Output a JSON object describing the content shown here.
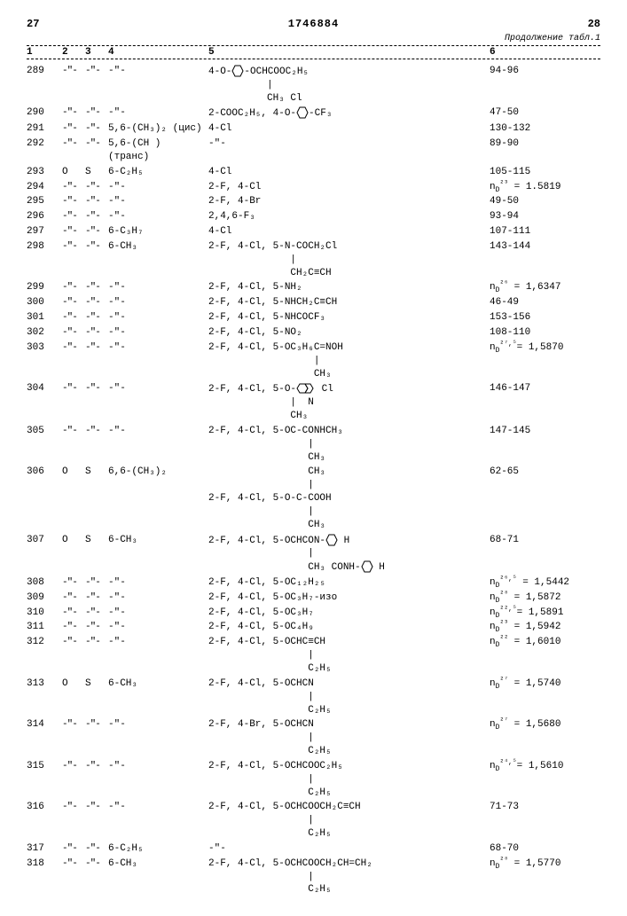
{
  "header": {
    "left_page": "27",
    "patent_no": "1746884",
    "right_page": "28",
    "continuation": "Продолжение табл.1"
  },
  "columns": [
    "1",
    "2",
    "3",
    "4",
    "5",
    "6"
  ],
  "ditto": "-\"-",
  "rows": [
    {
      "n": "289",
      "c2": "-\"-",
      "c3": "-\"-",
      "c4": "-\"-",
      "c5_lines": [
        "4-O-⬡-OCHCOOC₂H₅",
        "          |",
        "          CH₃ Cl"
      ],
      "c6": "94-96"
    },
    {
      "n": "290",
      "c2": "-\"-",
      "c3": "-\"-",
      "c4": "-\"-",
      "c5_lines": [
        "2-COOC₂H₅, 4-O-⬡-CF₃"
      ],
      "c6": "47-50"
    },
    {
      "n": "291",
      "c2": "-\"-",
      "c3": "-\"-",
      "c4": "5,6-(CH₃)₂ (цис)",
      "c5_lines": [
        "4-Cl"
      ],
      "c6": "130-132"
    },
    {
      "n": "292",
      "c2": "-\"-",
      "c3": "-\"-",
      "c4": "5,6-(CH ) (транс)",
      "c5_lines": [
        "-\"-"
      ],
      "c6": "89-90"
    },
    {
      "n": "293",
      "c2": "O",
      "c3": "S",
      "c4": "6-C₂H₅",
      "c5_lines": [
        "4-Cl"
      ],
      "c6": "105-115"
    },
    {
      "n": "294",
      "c2": "-\"-",
      "c3": "-\"-",
      "c4": "-\"-",
      "c5_lines": [
        "2-F, 4-Cl"
      ],
      "c6": "n_D²³ = 1.5819"
    },
    {
      "n": "295",
      "c2": "-\"-",
      "c3": "-\"-",
      "c4": "-\"-",
      "c5_lines": [
        "2-F, 4-Br"
      ],
      "c6": "49-50"
    },
    {
      "n": "296",
      "c2": "-\"-",
      "c3": "-\"-",
      "c4": "-\"-",
      "c5_lines": [
        "2,4,6-F₃"
      ],
      "c6": "93-94"
    },
    {
      "n": "297",
      "c2": "-\"-",
      "c3": "-\"-",
      "c4": "6-C₃H₇",
      "c5_lines": [
        "4-Cl"
      ],
      "c6": "107-111"
    },
    {
      "n": "298",
      "c2": "-\"-",
      "c3": "-\"-",
      "c4": "6-CH₃",
      "c5_lines": [
        "2-F, 4-Cl, 5-N-COCH₂Cl",
        "              |",
        "              CH₂C≡CH"
      ],
      "c6": "143-144"
    },
    {
      "n": "299",
      "c2": "-\"-",
      "c3": "-\"-",
      "c4": "-\"-",
      "c5_lines": [
        "2-F, 4-Cl, 5-NH₂"
      ],
      "c6": "n_D²⁶ = 1,6347"
    },
    {
      "n": "300",
      "c2": "-\"-",
      "c3": "-\"-",
      "c4": "-\"-",
      "c5_lines": [
        "2-F, 4-Cl, 5-NHCH₂C≡CH"
      ],
      "c6": "46-49"
    },
    {
      "n": "301",
      "c2": "-\"-",
      "c3": "-\"-",
      "c4": "-\"-",
      "c5_lines": [
        "2-F, 4-Cl, 5-NHCOCF₃"
      ],
      "c6": "153-156"
    },
    {
      "n": "302",
      "c2": "-\"-",
      "c3": "-\"-",
      "c4": "-\"-",
      "c5_lines": [
        "2-F, 4-Cl, 5-NO₂"
      ],
      "c6": "108-110"
    },
    {
      "n": "303",
      "c2": "-\"-",
      "c3": "-\"-",
      "c4": "-\"-",
      "c5_lines": [
        "2-F, 4-Cl, 5-OC₃H₆C=NOH",
        "                  |",
        "                  CH₃"
      ],
      "c6": "n_D²⁷·⁵= 1,5870"
    },
    {
      "n": "304",
      "c2": "-\"-",
      "c3": "-\"-",
      "c4": "-\"-",
      "c5_lines": [
        "2-F, 4-Cl, 5-O-⬡⬡ Cl",
        "              |  N",
        "              CH₃"
      ],
      "c6": "146-147"
    },
    {
      "n": "305",
      "c2": "-\"-",
      "c3": "-\"-",
      "c4": "-\"-",
      "c5_lines": [
        "2-F, 4-Cl, 5-OC-CONHCH₃",
        "                 |",
        "                 CH₃"
      ],
      "c6": "147-145"
    },
    {
      "n": "306",
      "c2": "O",
      "c3": "S",
      "c4": "6,6-(CH₃)₂",
      "c5_lines": [
        "                 CH₃",
        "                 |",
        "2-F, 4-Cl, 5-O-C-COOH",
        "                 |",
        "                 CH₃"
      ],
      "c6": "62-65"
    },
    {
      "n": "307",
      "c2": "O",
      "c3": "S",
      "c4": "6-CH₃",
      "c5_lines": [
        "2-F, 4-Cl, 5-OCHCON-⬡ H",
        "                 |",
        "                 CH₃ CONH-⬡ H"
      ],
      "c6": "68-71"
    },
    {
      "n": "308",
      "c2": "-\"-",
      "c3": "-\"-",
      "c4": "-\"-",
      "c5_lines": [
        "2-F, 4-Cl, 5-OC₁₂H₂₅"
      ],
      "c6": "n_D²⁶·⁵ = 1,5442"
    },
    {
      "n": "309",
      "c2": "-\"-",
      "c3": "-\"-",
      "c4": "-\"-",
      "c5_lines": [
        "2-F, 4-Cl, 5-OC₃H₇-изо"
      ],
      "c6": "n_D²⁸ = 1,5872"
    },
    {
      "n": "310",
      "c2": "-\"-",
      "c3": "-\"-",
      "c4": "-\"-",
      "c5_lines": [
        "2-F, 4-Cl, 5-OC₃H₇"
      ],
      "c6": "n_D²²·⁵= 1,5891"
    },
    {
      "n": "311",
      "c2": "-\"-",
      "c3": "-\"-",
      "c4": "-\"-",
      "c5_lines": [
        "2-F, 4-Cl, 5-OC₄H₉"
      ],
      "c6": "n_D²³ = 1,5942"
    },
    {
      "n": "312",
      "c2": "-\"-",
      "c3": "-\"-",
      "c4": "-\"-",
      "c5_lines": [
        "2-F, 4-Cl, 5-OCHC≡CH",
        "                 |",
        "                 C₂H₅"
      ],
      "c6": "n_D²² = 1,6010"
    },
    {
      "n": "313",
      "c2": "O",
      "c3": "S",
      "c4": "6-CH₃",
      "c5_lines": [
        "2-F, 4-Cl, 5-OCHCN",
        "                 |",
        "                 C₂H₅"
      ],
      "c6": "n_D²⁷ = 1,5740"
    },
    {
      "n": "314",
      "c2": "-\"-",
      "c3": "-\"-",
      "c4": "-\"-",
      "c5_lines": [
        "2-F, 4-Br, 5-OCHCN",
        "                 |",
        "                 C₂H₅"
      ],
      "c6": "n_D²⁷ = 1,5680"
    },
    {
      "n": "315",
      "c2": "-\"-",
      "c3": "-\"-",
      "c4": "-\"-",
      "c5_lines": [
        "2-F, 4-Cl, 5-OCHCOOC₂H₅",
        "                 |",
        "                 C₂H₅"
      ],
      "c6": "n_D²⁴·⁵= 1,5610"
    },
    {
      "n": "316",
      "c2": "-\"-",
      "c3": "-\"-",
      "c4": "-\"-",
      "c5_lines": [
        "2-F, 4-Cl, 5-OCHCOOCH₂C≡CH",
        "                 |",
        "                 C₂H₅"
      ],
      "c6": "71-73"
    },
    {
      "n": "317",
      "c2": "-\"-",
      "c3": "-\"-",
      "c4": "6-C₂H₅",
      "c5_lines": [
        "-\"-"
      ],
      "c6": "68-70"
    },
    {
      "n": "318",
      "c2": "-\"-",
      "c3": "-\"-",
      "c4": "6-CH₃",
      "c5_lines": [
        "2-F, 4-Cl, 5-OCHCOOCH₂CH=CH₂",
        "                 |",
        "                 C₂H₅"
      ],
      "c6": "n_D²⁸ = 1,5770"
    }
  ]
}
